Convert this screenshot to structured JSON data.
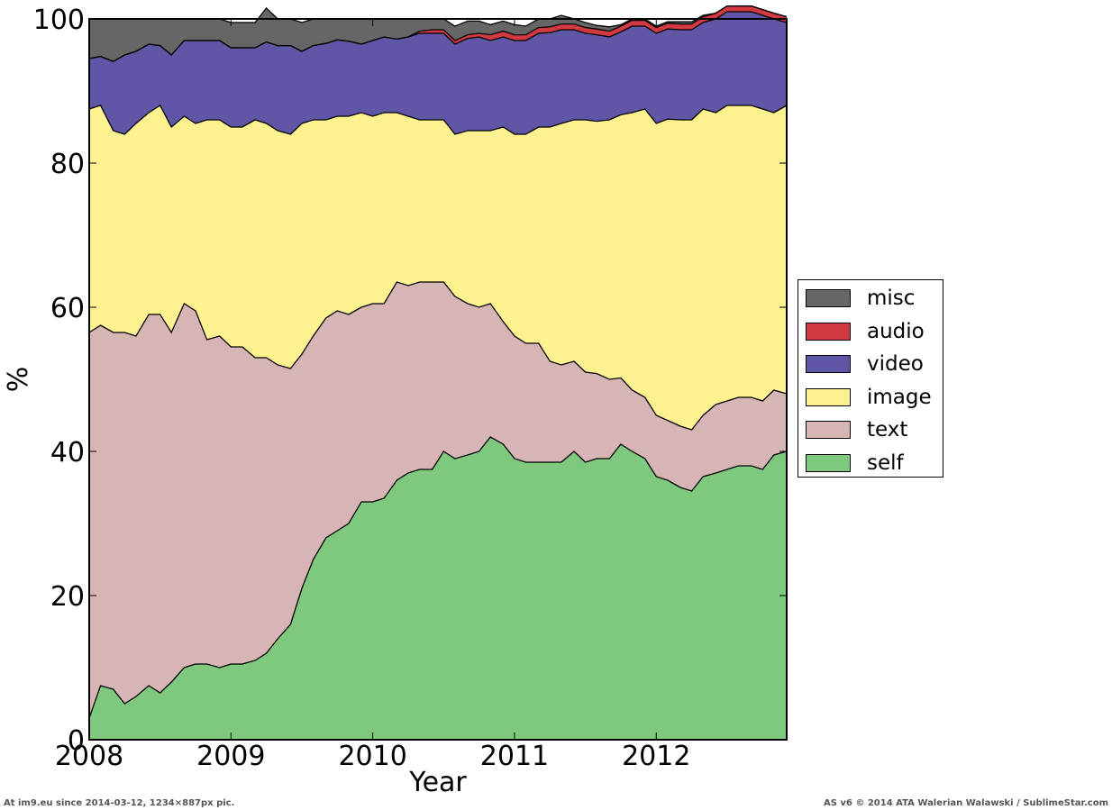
{
  "chart_data": {
    "type": "area",
    "stacked": true,
    "xlabel": "Year",
    "ylabel": "%",
    "xlim": [
      2008,
      2012.92
    ],
    "ylim": [
      0,
      100
    ],
    "xticks": [
      "2008",
      "2009",
      "2010",
      "2011",
      "2012"
    ],
    "yticks": [
      "0",
      "20",
      "40",
      "60",
      "80",
      "100"
    ],
    "legend_position": "right",
    "x": [
      2008.0,
      2008.08,
      2008.17,
      2008.25,
      2008.33,
      2008.42,
      2008.5,
      2008.58,
      2008.67,
      2008.75,
      2008.83,
      2008.92,
      2009.0,
      2009.08,
      2009.17,
      2009.25,
      2009.33,
      2009.42,
      2009.5,
      2009.58,
      2009.67,
      2009.75,
      2009.83,
      2009.92,
      2010.0,
      2010.08,
      2010.17,
      2010.25,
      2010.33,
      2010.42,
      2010.5,
      2010.58,
      2010.67,
      2010.75,
      2010.83,
      2010.92,
      2011.0,
      2011.08,
      2011.17,
      2011.25,
      2011.33,
      2011.42,
      2011.5,
      2011.58,
      2011.67,
      2011.75,
      2011.83,
      2011.92,
      2012.0,
      2012.08,
      2012.17,
      2012.25,
      2012.33,
      2012.42,
      2012.5,
      2012.58,
      2012.67,
      2012.75,
      2012.83,
      2012.92
    ],
    "series": [
      {
        "name": "self",
        "color": "#7fc97f",
        "values": [
          3,
          7.5,
          7,
          5,
          6,
          7.5,
          6.5,
          8,
          10,
          10.5,
          10.5,
          10,
          10.5,
          10.5,
          11,
          12,
          14,
          16,
          21,
          25,
          28,
          29,
          30,
          33,
          33,
          33.5,
          36,
          37,
          37.5,
          37.5,
          40,
          39,
          39.5,
          40,
          42,
          41,
          39,
          38.5,
          38.5,
          38.5,
          38.5,
          40,
          38.5,
          39,
          39,
          41,
          40,
          39,
          36.5,
          36,
          35,
          34.5,
          36.5,
          37,
          37.5,
          38,
          38,
          37.5,
          39.5,
          40
        ]
      },
      {
        "name": "text",
        "color": "#d7b5b4",
        "values": [
          53.5,
          50,
          49.5,
          51.5,
          50,
          51.5,
          52.5,
          48.5,
          50.5,
          49,
          45,
          46,
          44,
          44,
          42,
          41,
          38,
          35.5,
          32.5,
          31,
          30.5,
          30.5,
          29,
          27,
          27.5,
          27,
          27.5,
          26,
          26,
          26,
          23.5,
          22.5,
          21,
          20,
          18.5,
          17,
          17,
          16.5,
          16.5,
          14,
          13.5,
          12.5,
          12.5,
          11.8,
          11,
          9.2,
          8.5,
          8.5,
          8.5,
          8.3,
          8.5,
          8.5,
          8.5,
          9.5,
          9.5,
          9.5,
          9.5,
          9.5,
          9,
          8
        ]
      },
      {
        "name": "image",
        "color": "#fef18f",
        "values": [
          31,
          30.5,
          28,
          27.5,
          29.5,
          28,
          29,
          28.5,
          26,
          26,
          30.5,
          30,
          30.5,
          30.5,
          33,
          32.5,
          32.5,
          32.5,
          32,
          30,
          27.5,
          27,
          27.5,
          27,
          26,
          26.5,
          23.5,
          23.5,
          22.5,
          22.5,
          22.5,
          22.5,
          24,
          24.5,
          24,
          27,
          28,
          29,
          30,
          32.5,
          33.5,
          33.5,
          35,
          35,
          36,
          36.5,
          38.5,
          40,
          40.5,
          41.8,
          42.5,
          43,
          42.5,
          40.5,
          41,
          40.5,
          40.5,
          40.5,
          38.5,
          40
        ]
      },
      {
        "name": "video",
        "color": "#5f56a5",
        "values": [
          7,
          6.8,
          9.6,
          11,
          10,
          9.5,
          8.3,
          10,
          10.5,
          11.5,
          11,
          11,
          11,
          11,
          10,
          11.3,
          11.8,
          12.3,
          10,
          10.3,
          10.6,
          10.6,
          10.4,
          9.5,
          10.5,
          10.5,
          10.2,
          11,
          12,
          12,
          12,
          12.5,
          12.8,
          13,
          12.5,
          12.5,
          13,
          13,
          13,
          13.1,
          13,
          12.5,
          12,
          12,
          11.5,
          11.5,
          12,
          11.5,
          12.5,
          12.5,
          12.5,
          12.5,
          12,
          13,
          13,
          13,
          13,
          13,
          13,
          11.5
        ]
      },
      {
        "name": "audio",
        "color": "#d23941",
        "values": [
          0,
          0,
          0,
          0,
          0,
          0,
          0,
          0,
          0,
          0,
          0,
          0,
          0,
          0,
          0,
          0,
          0,
          0,
          0,
          0,
          0,
          0,
          0,
          0,
          0,
          0,
          0,
          0,
          0.3,
          0.5,
          0.5,
          0.5,
          0.5,
          0.5,
          0.8,
          0.8,
          0.8,
          0.8,
          0.8,
          0.8,
          0.8,
          0.8,
          0.8,
          0.8,
          0.8,
          0.8,
          0.8,
          0.8,
          0.8,
          0.8,
          0.8,
          0.8,
          0.8,
          0.8,
          0.8,
          0.8,
          0.8,
          0.8,
          0.8,
          0.8
        ]
      },
      {
        "name": "misc",
        "color": "#666666",
        "values": [
          5.5,
          5.2,
          5.9,
          5,
          4.5,
          3.5,
          3.7,
          5,
          3,
          3,
          3,
          3,
          3.5,
          3.5,
          3.5,
          4.7,
          3.7,
          3.7,
          4,
          3.7,
          3.4,
          2.9,
          3.1,
          3.5,
          3,
          2.5,
          2.8,
          2.5,
          1.7,
          1.5,
          1.5,
          2,
          1.9,
          1.7,
          1.4,
          1.4,
          1.4,
          1.2,
          1.2,
          1.1,
          1.2,
          0.7,
          0.7,
          0.5,
          0.6,
          0.2,
          0.2,
          0.2,
          0.2,
          0.2,
          0.3,
          0.3,
          0.2,
          0,
          0,
          0,
          0,
          0,
          0,
          0
        ]
      }
    ]
  },
  "footer": {
    "left": "At im9.eu since 2014-03-12, 1234×887px pic.",
    "right": "AS v6 © 2014 ATA Walerian Walawski / SublimeStar.com"
  }
}
